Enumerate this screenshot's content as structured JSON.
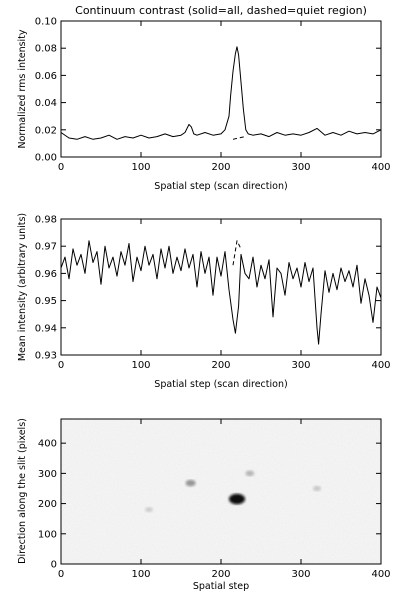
{
  "chart_data": [
    {
      "type": "line",
      "title": "Continuum contrast (solid=all, dashed=quiet region)",
      "xlabel": "Spatial step (scan direction)",
      "ylabel": "Normalized rms intensity",
      "xlim": [
        0,
        400
      ],
      "ylim": [
        0.0,
        0.1
      ],
      "xticks": [
        "0",
        "100",
        "200",
        "300",
        "400"
      ],
      "yticks": [
        "0.00",
        "0.02",
        "0.04",
        "0.06",
        "0.08",
        "0.10"
      ],
      "series": [
        {
          "style": "solid",
          "x": [
            0,
            10,
            20,
            30,
            40,
            50,
            60,
            70,
            80,
            90,
            100,
            110,
            120,
            130,
            140,
            150,
            155,
            160,
            163,
            166,
            170,
            180,
            190,
            200,
            205,
            210,
            212,
            215,
            218,
            220,
            222,
            225,
            228,
            231,
            234,
            240,
            250,
            260,
            270,
            280,
            290,
            300,
            310,
            320,
            330,
            340,
            350,
            360,
            370,
            380,
            390,
            400
          ],
          "values": [
            0.018,
            0.014,
            0.013,
            0.015,
            0.013,
            0.014,
            0.016,
            0.013,
            0.015,
            0.014,
            0.016,
            0.014,
            0.015,
            0.017,
            0.015,
            0.016,
            0.018,
            0.024,
            0.022,
            0.017,
            0.016,
            0.018,
            0.016,
            0.017,
            0.02,
            0.03,
            0.045,
            0.063,
            0.076,
            0.081,
            0.075,
            0.055,
            0.035,
            0.02,
            0.017,
            0.016,
            0.017,
            0.015,
            0.018,
            0.016,
            0.017,
            0.016,
            0.018,
            0.021,
            0.016,
            0.018,
            0.016,
            0.019,
            0.017,
            0.018,
            0.017,
            0.02
          ]
        },
        {
          "style": "dashed",
          "x": [
            215,
            222,
            230
          ],
          "values": [
            0.013,
            0.014,
            0.015
          ]
        }
      ]
    },
    {
      "type": "line",
      "title": "",
      "xlabel": "Spatial step (scan direction)",
      "ylabel": "Mean intensity (arbitrary units)",
      "xlim": [
        0,
        400
      ],
      "ylim": [
        0.93,
        0.98
      ],
      "xticks": [
        "0",
        "100",
        "200",
        "300",
        "400"
      ],
      "yticks": [
        "0.93",
        "0.94",
        "0.95",
        "0.96",
        "0.97",
        "0.98"
      ],
      "series": [
        {
          "style": "solid",
          "x": [
            0,
            5,
            10,
            15,
            20,
            25,
            30,
            35,
            40,
            45,
            50,
            55,
            60,
            65,
            70,
            75,
            80,
            85,
            90,
            95,
            100,
            105,
            110,
            115,
            120,
            125,
            130,
            135,
            140,
            145,
            150,
            155,
            160,
            165,
            170,
            175,
            180,
            185,
            190,
            195,
            200,
            205,
            210,
            215,
            218,
            222,
            225,
            230,
            235,
            240,
            245,
            250,
            255,
            260,
            265,
            270,
            275,
            280,
            285,
            290,
            295,
            300,
            305,
            310,
            315,
            320,
            322,
            325,
            330,
            335,
            340,
            345,
            350,
            355,
            360,
            365,
            370,
            375,
            380,
            385,
            390,
            395,
            400
          ],
          "values": [
            0.962,
            0.966,
            0.958,
            0.969,
            0.963,
            0.967,
            0.96,
            0.972,
            0.964,
            0.968,
            0.956,
            0.97,
            0.962,
            0.966,
            0.959,
            0.968,
            0.963,
            0.971,
            0.957,
            0.966,
            0.961,
            0.97,
            0.963,
            0.967,
            0.958,
            0.969,
            0.962,
            0.97,
            0.96,
            0.966,
            0.961,
            0.969,
            0.962,
            0.967,
            0.955,
            0.968,
            0.96,
            0.966,
            0.952,
            0.966,
            0.959,
            0.968,
            0.954,
            0.943,
            0.938,
            0.948,
            0.967,
            0.96,
            0.958,
            0.966,
            0.955,
            0.963,
            0.958,
            0.965,
            0.944,
            0.962,
            0.96,
            0.952,
            0.964,
            0.958,
            0.962,
            0.955,
            0.964,
            0.957,
            0.962,
            0.94,
            0.934,
            0.945,
            0.961,
            0.953,
            0.96,
            0.954,
            0.962,
            0.957,
            0.961,
            0.955,
            0.963,
            0.949,
            0.958,
            0.952,
            0.942,
            0.955,
            0.951
          ]
        },
        {
          "style": "dashed",
          "x": [
            215,
            220,
            225
          ],
          "values": [
            0.963,
            0.972,
            0.969
          ]
        }
      ]
    },
    {
      "type": "heatmap",
      "title": "",
      "xlabel": "Spatial step",
      "ylabel": "Direction along the slit (pixels)",
      "xlim": [
        0,
        400
      ],
      "ylim": [
        0,
        480
      ],
      "xticks": [
        "0",
        "100",
        "200",
        "300",
        "400"
      ],
      "yticks": [
        "0",
        "100",
        "200",
        "300",
        "400"
      ],
      "colormap": "grayscale",
      "features": [
        {
          "x": 220,
          "y": 215,
          "intensity": 1.0
        },
        {
          "x": 162,
          "y": 268,
          "intensity": 0.35
        },
        {
          "x": 236,
          "y": 300,
          "intensity": 0.2
        },
        {
          "x": 320,
          "y": 250,
          "intensity": 0.12
        },
        {
          "x": 110,
          "y": 180,
          "intensity": 0.1
        }
      ]
    }
  ]
}
